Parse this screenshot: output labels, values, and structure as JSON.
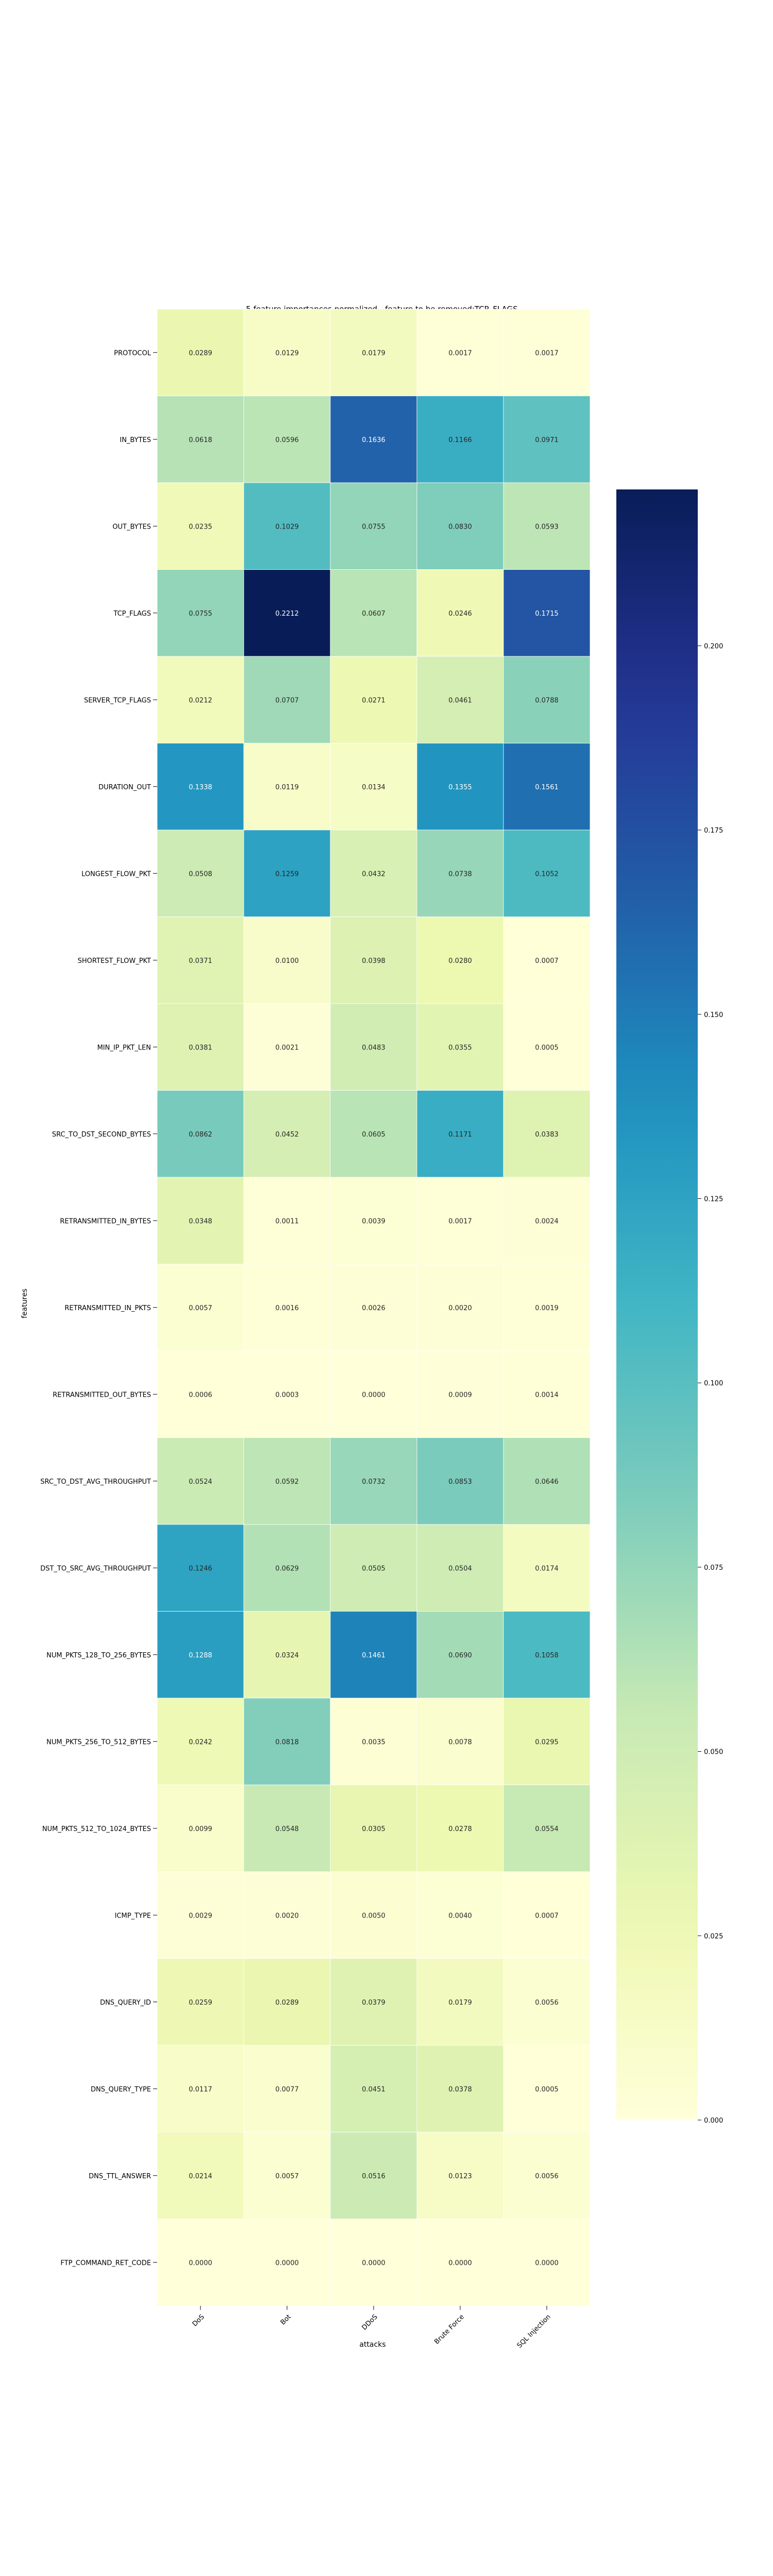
{
  "chart_data": {
    "type": "heatmap",
    "title": "5 feature importances normalized - feature to be removed:TCP_FLAGS",
    "xlabel": "attacks",
    "ylabel": "features",
    "colormap": "YlGnBu",
    "grid": false,
    "legend": "colorbar-right",
    "value_format": "4 decimals",
    "vmin": 0.0,
    "vmax": 0.2212,
    "colorbar_ticks": [
      "0.000",
      "0.025",
      "0.050",
      "0.075",
      "0.100",
      "0.125",
      "0.150",
      "0.175",
      "0.200"
    ],
    "colorbar_tick_values": [
      0.0,
      0.025,
      0.05,
      0.075,
      0.1,
      0.125,
      0.15,
      0.175,
      0.2
    ],
    "columns": [
      "DoS",
      "Bot",
      "DDoS",
      "Brute Force",
      "SQL Injection"
    ],
    "rows": [
      "PROTOCOL",
      "IN_BYTES",
      "OUT_BYTES",
      "TCP_FLAGS",
      "SERVER_TCP_FLAGS",
      "DURATION_OUT",
      "LONGEST_FLOW_PKT",
      "SHORTEST_FLOW_PKT",
      "MIN_IP_PKT_LEN",
      "SRC_TO_DST_SECOND_BYTES",
      "RETRANSMITTED_IN_BYTES",
      "RETRANSMITTED_IN_PKTS",
      "RETRANSMITTED_OUT_BYTES",
      "SRC_TO_DST_AVG_THROUGHPUT",
      "DST_TO_SRC_AVG_THROUGHPUT",
      "NUM_PKTS_128_TO_256_BYTES",
      "NUM_PKTS_256_TO_512_BYTES",
      "NUM_PKTS_512_TO_1024_BYTES",
      "ICMP_TYPE",
      "DNS_QUERY_ID",
      "DNS_QUERY_TYPE",
      "DNS_TTL_ANSWER",
      "FTP_COMMAND_RET_CODE"
    ],
    "values": [
      [
        0.0289,
        0.0129,
        0.0179,
        0.0017,
        0.0017
      ],
      [
        0.0618,
        0.0596,
        0.1636,
        0.1166,
        0.0971
      ],
      [
        0.0235,
        0.1029,
        0.0755,
        0.083,
        0.0593
      ],
      [
        0.0755,
        0.2212,
        0.0607,
        0.0246,
        0.1715
      ],
      [
        0.0212,
        0.0707,
        0.0271,
        0.0461,
        0.0788
      ],
      [
        0.1338,
        0.0119,
        0.0134,
        0.1355,
        0.1561
      ],
      [
        0.0508,
        0.1259,
        0.0432,
        0.0738,
        0.1052
      ],
      [
        0.0371,
        0.01,
        0.0398,
        0.028,
        0.0007
      ],
      [
        0.0381,
        0.0021,
        0.0483,
        0.0355,
        0.0005
      ],
      [
        0.0862,
        0.0452,
        0.0605,
        0.1171,
        0.0383
      ],
      [
        0.0348,
        0.0011,
        0.0039,
        0.0017,
        0.0024
      ],
      [
        0.0057,
        0.0016,
        0.0026,
        0.002,
        0.0019
      ],
      [
        0.0006,
        0.0003,
        0.0,
        0.0009,
        0.0014
      ],
      [
        0.0524,
        0.0592,
        0.0732,
        0.0853,
        0.0646
      ],
      [
        0.1246,
        0.0629,
        0.0505,
        0.0504,
        0.0174
      ],
      [
        0.1288,
        0.0324,
        0.1461,
        0.069,
        0.1058
      ],
      [
        0.0242,
        0.0818,
        0.0035,
        0.0078,
        0.0295
      ],
      [
        0.0099,
        0.0548,
        0.0305,
        0.0278,
        0.0554
      ],
      [
        0.0029,
        0.002,
        0.005,
        0.004,
        0.0007
      ],
      [
        0.0259,
        0.0289,
        0.0379,
        0.0179,
        0.0056
      ],
      [
        0.0117,
        0.0077,
        0.0451,
        0.0378,
        0.0005
      ],
      [
        0.0214,
        0.0057,
        0.0516,
        0.0123,
        0.0056
      ],
      [
        0.0,
        0.0,
        0.0,
        0.0,
        0.0
      ]
    ]
  }
}
